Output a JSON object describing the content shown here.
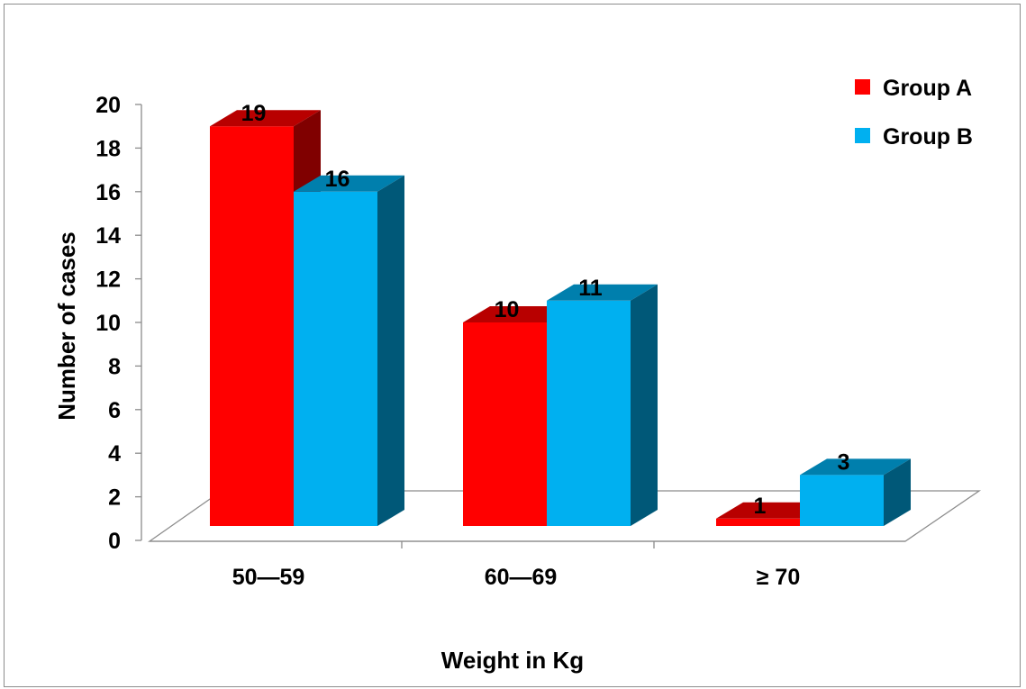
{
  "chart_data": {
    "type": "bar",
    "title": "",
    "xlabel": "Weight in Kg",
    "ylabel": "Number of cases",
    "categories": [
      "50—59",
      "60—69",
      "≥ 70"
    ],
    "series": [
      {
        "name": "Group A",
        "values": [
          19,
          10,
          1
        ],
        "color": "#ff0000"
      },
      {
        "name": "Group B",
        "values": [
          16,
          11,
          3
        ],
        "color": "#00b0f0"
      }
    ],
    "ylim": [
      0,
      20
    ],
    "yticks": [
      "0",
      "2",
      "4",
      "6",
      "8",
      "10",
      "12",
      "14",
      "16",
      "18",
      "20"
    ],
    "grid": false,
    "legend_position": "top-right",
    "style": "3d-clustered-column"
  }
}
